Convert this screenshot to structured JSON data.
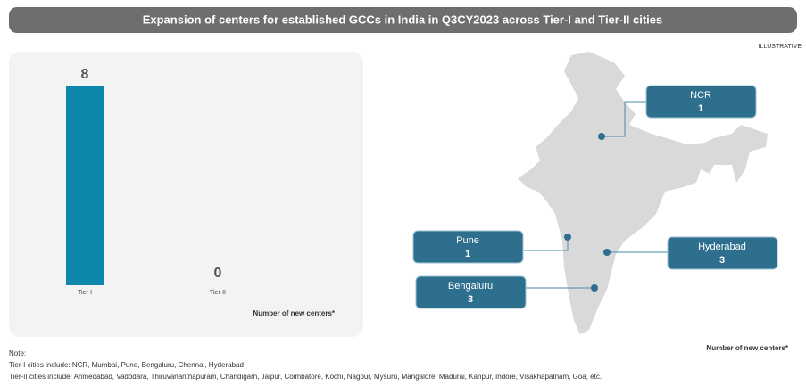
{
  "title": "Expansion of centers for established GCCs in India in Q3CY2023 across Tier-I and Tier-II cities",
  "illustrative": "ILLUSTRATIVE",
  "chart_data": {
    "type": "bar",
    "categories": [
      "Tier-I",
      "Tier-II"
    ],
    "values": [
      8,
      0
    ],
    "color": "#0e87ad",
    "axis_label": "Number of new centers*"
  },
  "map": {
    "callouts": [
      {
        "name": "NCR",
        "value": 1
      },
      {
        "name": "Pune",
        "value": 1
      },
      {
        "name": "Hyderabad",
        "value": 3
      },
      {
        "name": "Bengaluru",
        "value": 3
      }
    ],
    "axis_label": "Number of new centers*"
  },
  "notes": {
    "heading": "Note:",
    "lines": [
      "Tier-I cities include: NCR, Mumbai, Pune, Bengaluru, Chennai, Hyderabad",
      "Tier-II cities include: Ahmedabad, Vadodara, Thiruvananthapuram, Chandigarh, Jaipur, Coimbatore, Kochi, Nagpur, Mysuru, Mangalore, Madurai, Kanpur, Indore, Visakhapatnam, Goa, etc."
    ]
  }
}
